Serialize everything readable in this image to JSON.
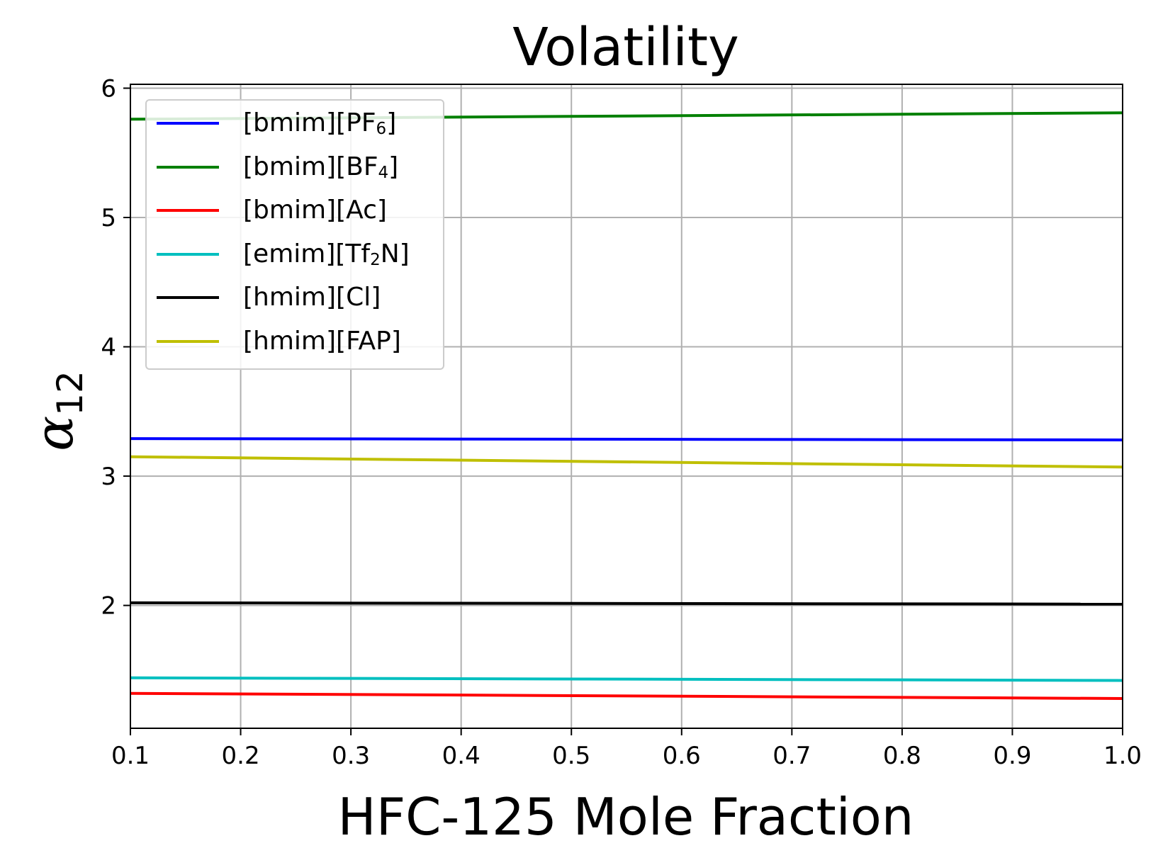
{
  "chart_data": {
    "type": "line",
    "title": "Volatility",
    "xlabel": "HFC-125 Mole Fraction",
    "ylabel": "α",
    "ylabel_subscript": "12",
    "xlim": [
      0.1,
      1.0
    ],
    "ylim": [
      1.05,
      6.03
    ],
    "xticks": [
      0.1,
      0.2,
      0.3,
      0.4,
      0.5,
      0.6,
      0.7,
      0.8,
      0.9,
      1.0
    ],
    "xtick_labels": [
      "0.1",
      "0.2",
      "0.3",
      "0.4",
      "0.5",
      "0.6",
      "0.7",
      "0.8",
      "0.9",
      "1.0"
    ],
    "yticks": [
      2,
      3,
      4,
      5,
      6
    ],
    "ytick_labels": [
      "2",
      "3",
      "4",
      "5",
      "6"
    ],
    "grid": true,
    "legend_position": "top-left",
    "series": [
      {
        "name": "[bmim][PF",
        "name_sub": "6",
        "name_suffix": "]",
        "color": "#0000ff",
        "x": [
          0.1,
          1.0
        ],
        "y": [
          3.29,
          3.28
        ]
      },
      {
        "name": "[bmim][BF",
        "name_sub": "4",
        "name_suffix": "]",
        "color": "#008000",
        "x": [
          0.1,
          1.0
        ],
        "y": [
          5.76,
          5.81
        ]
      },
      {
        "name": "[bmim][Ac]",
        "name_sub": "",
        "name_suffix": "",
        "color": "#ff0000",
        "x": [
          0.1,
          1.0
        ],
        "y": [
          1.32,
          1.28
        ]
      },
      {
        "name": "[emim][Tf",
        "name_sub": "2",
        "name_suffix": "N]",
        "color": "#00bfbf",
        "x": [
          0.1,
          1.0
        ],
        "y": [
          1.44,
          1.42
        ]
      },
      {
        "name": "[hmim][Cl]",
        "name_sub": "",
        "name_suffix": "",
        "color": "#000000",
        "x": [
          0.1,
          1.0
        ],
        "y": [
          2.02,
          2.01
        ]
      },
      {
        "name": "[hmim][FAP]",
        "name_sub": "",
        "name_suffix": "",
        "color": "#bfbf00",
        "x": [
          0.1,
          1.0
        ],
        "y": [
          3.15,
          3.07
        ]
      }
    ]
  }
}
